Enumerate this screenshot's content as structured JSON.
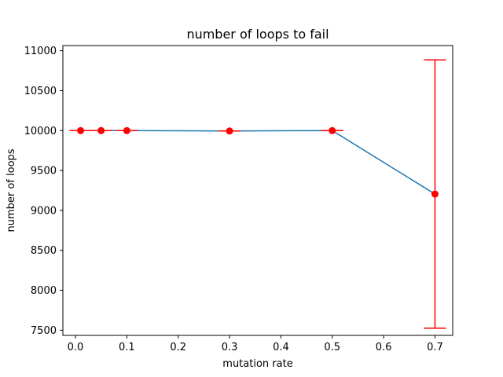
{
  "chart_data": {
    "type": "line",
    "title": "number of loops to fail",
    "xlabel": "mutation rate",
    "ylabel": "number of loops",
    "xlim": [
      -0.0245,
      0.7345
    ],
    "ylim": [
      7435,
      11065
    ],
    "xticks": [
      0.0,
      0.1,
      0.2,
      0.3,
      0.4,
      0.5,
      0.6,
      0.7
    ],
    "xtick_labels": [
      "0.0",
      "0.1",
      "0.2",
      "0.3",
      "0.4",
      "0.5",
      "0.6",
      "0.7"
    ],
    "yticks": [
      7500,
      8000,
      8500,
      9000,
      9500,
      10000,
      10500,
      11000
    ],
    "ytick_labels": [
      "7500",
      "8000",
      "8500",
      "9000",
      "9500",
      "10000",
      "10500",
      "11000"
    ],
    "grid": false,
    "series": [
      {
        "line_color": "#1f77b4",
        "marker_color": "#ff0000",
        "x": [
          0.01,
          0.05,
          0.1,
          0.3,
          0.5,
          0.7
        ],
        "y": [
          10000,
          10000,
          10000,
          9995,
          10000,
          9205
        ],
        "yerr": [
          0,
          0,
          0,
          0,
          0,
          1680
        ]
      }
    ]
  }
}
